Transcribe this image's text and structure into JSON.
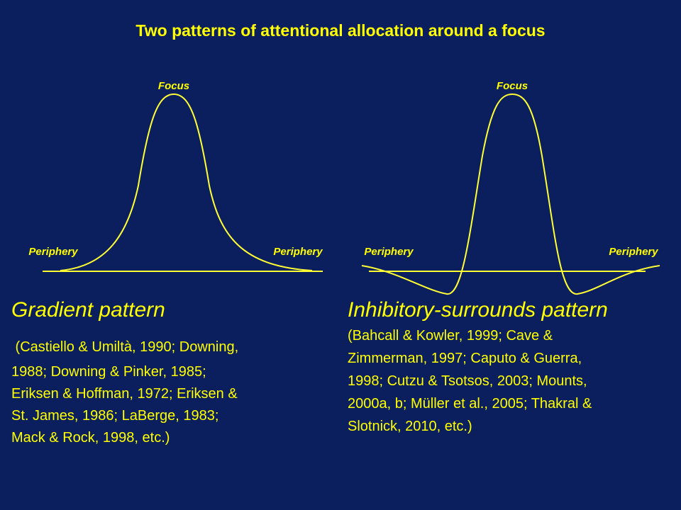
{
  "title": "Two patterns of attentional allocation around a focus",
  "left": {
    "focus": "Focus",
    "periphery_left": "Periphery",
    "periphery_right": "Periphery",
    "heading": "Gradient pattern",
    "citation": [
      " (Castiello & Umiltà, 1990; Downing,",
      "1988; Downing & Pinker, 1985;",
      "Eriksen & Hoffman, 1972; Eriksen &",
      "St. James, 1986; LaBerge, 1983;",
      "Mack & Rock, 1998, etc.)"
    ]
  },
  "right": {
    "focus": "Focus",
    "periphery_left": "Periphery",
    "periphery_right": "Periphery",
    "heading": "Inhibitory-surrounds pattern",
    "citation": [
      "(Bahcall & Kowler, 1999; Cave &",
      "Zimmerman, 1997; Caputo & Guerra,",
      "1998; Cutzu & Tsotsos, 2003; Mounts,",
      "2000a, b; Müller et al., 2005; Thakral &",
      "Slotnick, 2010, etc.)"
    ]
  }
}
